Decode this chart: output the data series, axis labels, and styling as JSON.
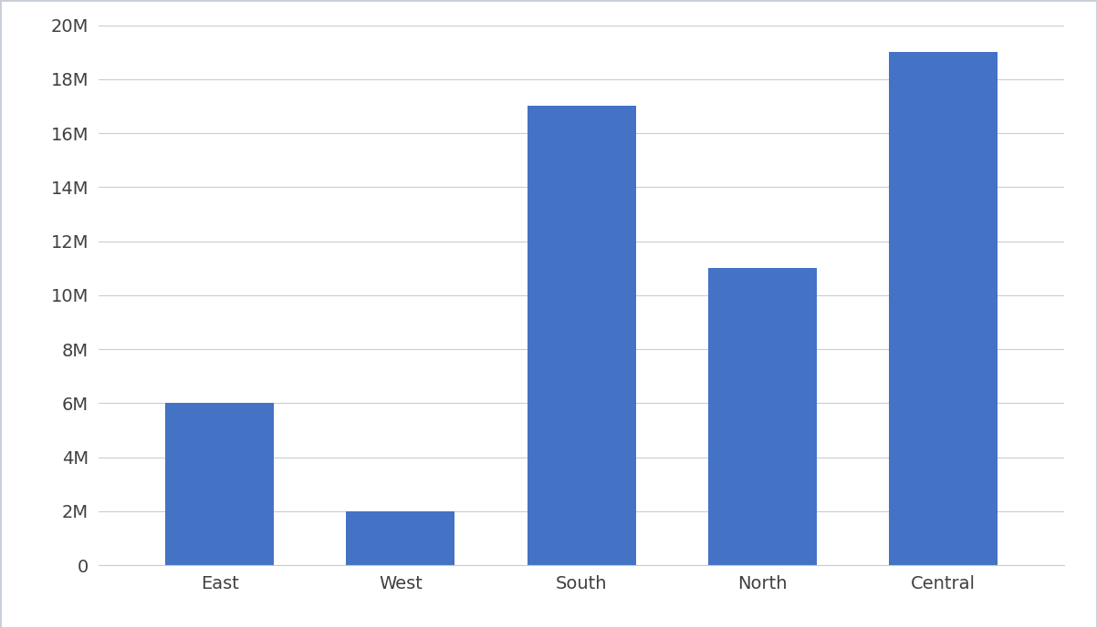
{
  "categories": [
    "East",
    "West",
    "South",
    "North",
    "Central"
  ],
  "values": [
    6000000,
    2000000,
    17000000,
    11000000,
    19000000
  ],
  "bar_color": "#4472C4",
  "background_color": "#ffffff",
  "plot_background_color": "#ffffff",
  "outer_border_color": "#c8cdd4",
  "ylim": [
    0,
    20000000
  ],
  "yticks": [
    0,
    2000000,
    4000000,
    6000000,
    8000000,
    10000000,
    12000000,
    14000000,
    16000000,
    18000000,
    20000000
  ],
  "ytick_labels": [
    "0",
    "2M",
    "4M",
    "6M",
    "8M",
    "10M",
    "12M",
    "14M",
    "16M",
    "18M",
    "20M"
  ],
  "grid_color": "#c8cdd4",
  "tick_color": "#404040",
  "label_fontsize": 14,
  "tick_fontsize": 14,
  "bar_width": 0.6
}
